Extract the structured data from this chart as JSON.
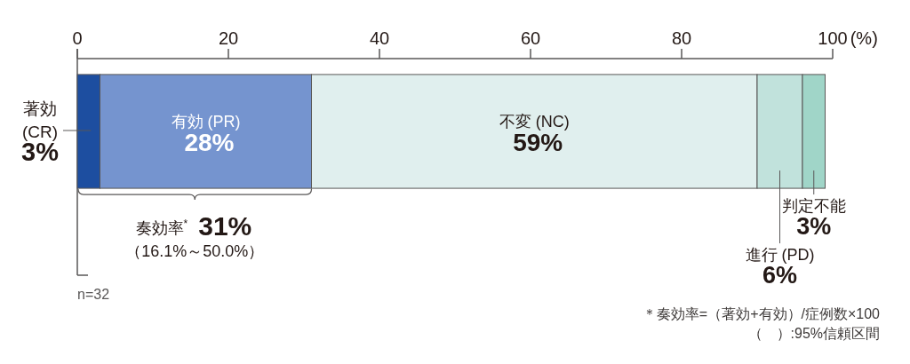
{
  "chart_data": {
    "type": "bar",
    "orientation": "horizontal",
    "stacked": true,
    "categories": [
      null
    ],
    "series": [
      {
        "name": "著効\n(CR)",
        "color": "#1d4ea0",
        "values": [
          3
        ],
        "value_labels": [
          "3%"
        ]
      },
      {
        "name": "有効 (PR)",
        "color": "#7594cf",
        "values": [
          28
        ],
        "value_labels": [
          "28%"
        ]
      },
      {
        "name": "不変 (NC)",
        "color": "#e0efee",
        "values": [
          59
        ],
        "value_labels": [
          "59%"
        ]
      },
      {
        "name": "進行 (PD)",
        "color": "#c1e2dc",
        "values": [
          6
        ],
        "value_labels": [
          "6%"
        ]
      },
      {
        "name": "判定不能",
        "color": "#a0d5c8",
        "values": [
          3
        ],
        "value_labels": [
          "3%"
        ]
      }
    ],
    "xlabel": "(%)",
    "xlim": [
      0,
      100
    ],
    "xticks": [
      0,
      20,
      40,
      60,
      80,
      100
    ],
    "annotations": [
      "奏効率$^{*}$",
      "31%",
      "（16.1%～50.0%）",
      "n=32",
      "＊奏効率=（著効+有効）/症例数×100",
      "（　）:95%信頼区間"
    ]
  }
}
